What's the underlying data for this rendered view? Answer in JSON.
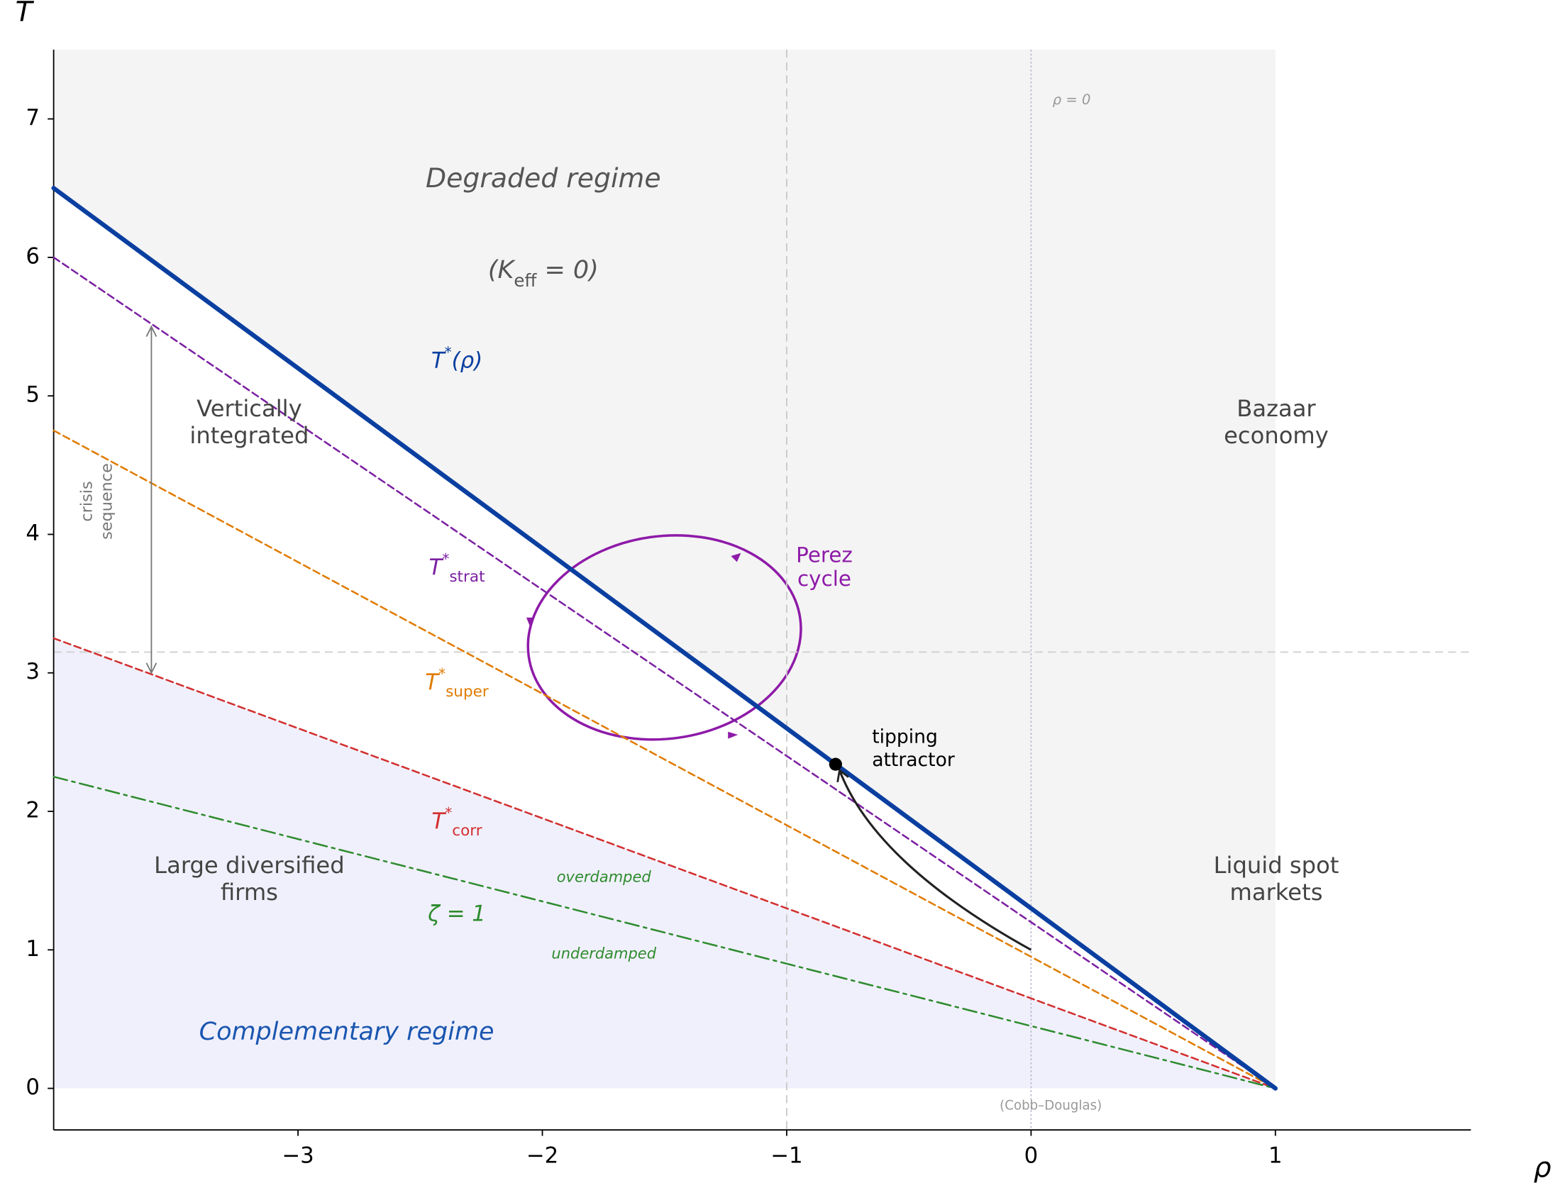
{
  "chart_data": {
    "type": "line",
    "x_label": "ρ",
    "y_label": "T",
    "xlim": [
      -4,
      1.8
    ],
    "ylim": [
      -0.3,
      7.5
    ],
    "xticks": [
      {
        "value": -3,
        "label": "−3"
      },
      {
        "value": -2,
        "label": "−2"
      },
      {
        "value": -1,
        "label": "−1"
      },
      {
        "value": 0,
        "label": "0"
      },
      {
        "value": 1,
        "label": "1"
      }
    ],
    "yticks": [
      0,
      1,
      2,
      3,
      4,
      5,
      6,
      7
    ],
    "x": [
      -4,
      1
    ],
    "series": [
      {
        "name": {
          "base": "T",
          "sup": "*",
          "after": "(ρ)"
        },
        "color": "#0a3fa0",
        "values": [
          6.5,
          0
        ],
        "style": "solid"
      },
      {
        "name": {
          "base": "T",
          "sup": "*",
          "sub": "strat"
        },
        "color": "#7b1fa2",
        "values": [
          6.0,
          0
        ],
        "style": "dashed"
      },
      {
        "name": {
          "base": "T",
          "sup": "*",
          "sub": "super"
        },
        "color": "#e07b00",
        "values": [
          4.75,
          0
        ],
        "style": "dashed"
      },
      {
        "name": {
          "base": "T",
          "sup": "*",
          "sub": "corr"
        },
        "color": "#d32f2f",
        "values": [
          3.25,
          0
        ],
        "style": "dashed"
      },
      {
        "name": {
          "base": "ζ = 1"
        },
        "color": "#2e8b2e",
        "values": [
          2.25,
          0
        ],
        "style": "dashdot"
      }
    ],
    "reference_lines": {
      "x": [
        -1,
        0
      ],
      "y": [
        3.15
      ]
    },
    "attractor": {
      "x": -0.8,
      "y": 2.34
    },
    "crisis_arrow": {
      "x": -3.6,
      "from": 5.5,
      "to": 3.0
    },
    "annotations": {
      "degraded": "Degraded regime",
      "keff": {
        "before": "(K",
        "sub": "eff",
        "after": " = 0)"
      },
      "vertical": [
        "Vertically",
        "integrated"
      ],
      "bazaar": [
        "Bazaar",
        "economy"
      ],
      "liquid": [
        "Liquid spot",
        "markets"
      ],
      "large": [
        "Large diversified",
        "firms"
      ],
      "complementary": "Complementary regime",
      "perez": [
        "Perez",
        "cycle"
      ],
      "tipping": [
        "tipping",
        "attractor"
      ],
      "crisis": [
        "crisis",
        "sequence"
      ],
      "overdamped": "overdamped",
      "underdamped": "underdamped",
      "rho0": "ρ = 0",
      "cobb": "(Cobb–Douglas)"
    }
  }
}
